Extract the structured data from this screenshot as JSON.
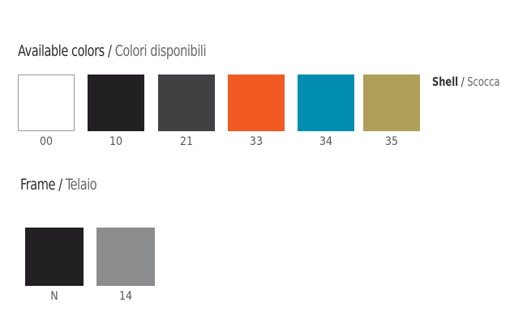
{
  "header": {
    "title_en": "Available colors",
    "separator": " / ",
    "title_it": "Colori disponibili"
  },
  "shell": {
    "label_en": "Shell",
    "separator": " / ",
    "label_it": "Scocca",
    "swatches": [
      {
        "code": "00",
        "color": "#ffffff"
      },
      {
        "code": "10",
        "color": "#222022"
      },
      {
        "code": "21",
        "color": "#414042"
      },
      {
        "code": "33",
        "color": "#f15a22"
      },
      {
        "code": "34",
        "color": "#008db0"
      },
      {
        "code": "35",
        "color": "#b09f59"
      }
    ]
  },
  "frame": {
    "label_en": "Frame",
    "separator": " / ",
    "label_it": "Telaio",
    "swatches": [
      {
        "code": "N",
        "color": "#222022"
      },
      {
        "code": "14",
        "color": "#8a8c8e"
      }
    ]
  }
}
